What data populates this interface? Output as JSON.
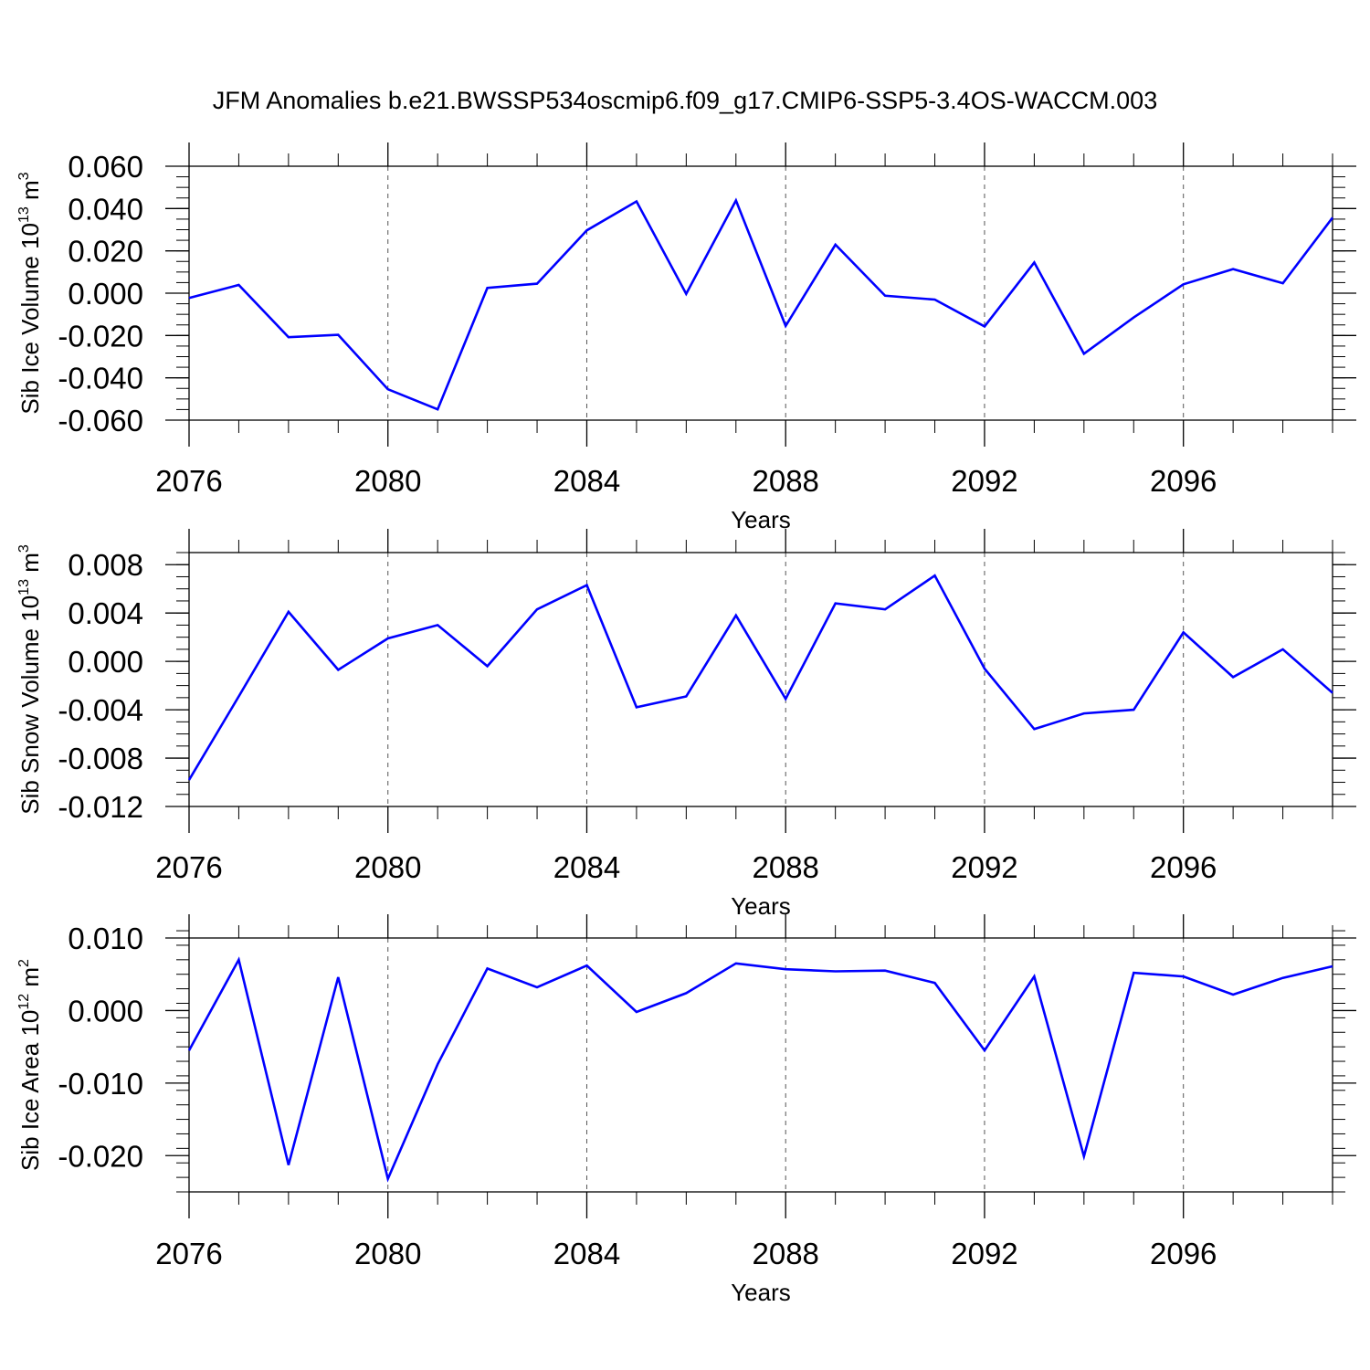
{
  "title": "JFM Anomalies b.e21.BWSSP534oscmip6.f09_g17.CMIP6-SSP5-3.4OS-WACCM.003",
  "chart_data": [
    {
      "type": "line",
      "title": "",
      "xlabel": "Years",
      "ylabel": {
        "text": "Sib Ice Volume 10",
        "exp": "13",
        "unit": " m",
        "unit_exp": "3"
      },
      "xlim": [
        2076,
        2099
      ],
      "ylim": [
        -0.06,
        0.06
      ],
      "grid": "vertical dashed at major x ticks",
      "x_ticks": [
        2076,
        2080,
        2084,
        2088,
        2092,
        2096
      ],
      "x_tick_labels": [
        "2076",
        "2080",
        "2084",
        "2088",
        "2092",
        "2096"
      ],
      "y_ticks": [
        -0.06,
        -0.04,
        -0.02,
        0,
        0.02,
        0.04,
        0.06
      ],
      "y_tick_labels": [
        "-0.060",
        "-0.040",
        "-0.020",
        "0.000",
        "0.020",
        "0.040",
        "0.060"
      ],
      "y_minor_step": 0.005,
      "color": "#0000ff",
      "x": [
        2076,
        2077,
        2078,
        2079,
        2080,
        2081,
        2082,
        2083,
        2084,
        2085,
        2086,
        2087,
        2088,
        2089,
        2090,
        2091,
        2092,
        2093,
        2094,
        2095,
        2096,
        2097,
        2098,
        2099
      ],
      "y": [
        -0.0023,
        0.0039,
        -0.0208,
        -0.0197,
        -0.0454,
        -0.0549,
        0.0025,
        0.0045,
        0.0297,
        0.0434,
        -0.0003,
        0.0438,
        -0.0155,
        0.0229,
        -0.0012,
        -0.003,
        -0.0157,
        0.0145,
        -0.0286,
        -0.0115,
        0.0042,
        0.0114,
        0.0047,
        0.0357
      ]
    },
    {
      "type": "line",
      "title": "",
      "xlabel": "Years",
      "ylabel": {
        "text": "Sib Snow Volume 10",
        "exp": "13",
        "unit": " m",
        "unit_exp": "3"
      },
      "xlim": [
        2076,
        2099
      ],
      "ylim": [
        -0.012,
        0.009
      ],
      "grid": "vertical dashed at major x ticks",
      "x_ticks": [
        2076,
        2080,
        2084,
        2088,
        2092,
        2096
      ],
      "x_tick_labels": [
        "2076",
        "2080",
        "2084",
        "2088",
        "2092",
        "2096"
      ],
      "y_ticks": [
        -0.012,
        -0.008,
        -0.004,
        0,
        0.004,
        0.008
      ],
      "y_tick_labels": [
        "-0.012",
        "-0.008",
        "-0.004",
        "0.000",
        "0.004",
        "0.008"
      ],
      "y_minor_step": 0.001,
      "color": "#0000ff",
      "x": [
        2076,
        2077,
        2078,
        2079,
        2080,
        2081,
        2082,
        2083,
        2084,
        2085,
        2086,
        2087,
        2088,
        2089,
        2090,
        2091,
        2092,
        2093,
        2094,
        2095,
        2096,
        2097,
        2098,
        2099
      ],
      "y": [
        -0.0098,
        -0.0029,
        0.0041,
        -0.0007,
        0.0019,
        0.003,
        -0.0004,
        0.0043,
        0.0063,
        -0.0038,
        -0.0029,
        0.0038,
        -0.0031,
        0.0048,
        0.0043,
        0.0071,
        -0.0006,
        -0.0056,
        -0.0043,
        -0.004,
        0.0024,
        -0.0013,
        0.001,
        -0.0026
      ]
    },
    {
      "type": "line",
      "title": "",
      "xlabel": "Years",
      "ylabel": {
        "text": "Sib Ice Area 10",
        "exp": "12",
        "unit": " m",
        "unit_exp": "2"
      },
      "xlim": [
        2076,
        2099
      ],
      "ylim": [
        -0.025,
        0.01
      ],
      "grid": "vertical dashed at major x ticks",
      "x_ticks": [
        2076,
        2080,
        2084,
        2088,
        2092,
        2096
      ],
      "x_tick_labels": [
        "2076",
        "2080",
        "2084",
        "2088",
        "2092",
        "2096"
      ],
      "y_ticks": [
        -0.02,
        -0.01,
        0,
        0.01
      ],
      "y_tick_labels": [
        "-0.020",
        "-0.010",
        "0.000",
        "0.010"
      ],
      "y_minor_step": 0.002,
      "color": "#0000ff",
      "x": [
        2076,
        2077,
        2078,
        2079,
        2080,
        2081,
        2082,
        2083,
        2084,
        2085,
        2086,
        2087,
        2088,
        2089,
        2090,
        2091,
        2092,
        2093,
        2094,
        2095,
        2096,
        2097,
        2098,
        2099
      ],
      "y": [
        -0.0055,
        0.007,
        -0.0213,
        0.0046,
        -0.0232,
        -0.0074,
        0.0058,
        0.0032,
        0.0062,
        -0.0002,
        0.0024,
        0.0065,
        0.0057,
        0.0054,
        0.0055,
        0.0038,
        -0.0055,
        0.0047,
        -0.0201,
        0.0052,
        0.0047,
        0.0022,
        0.0045,
        0.0061
      ]
    }
  ]
}
